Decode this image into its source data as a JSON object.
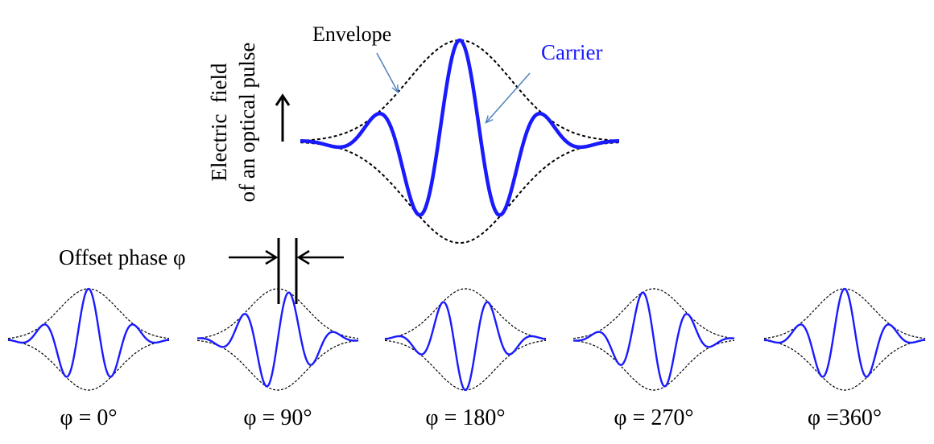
{
  "diagram": {
    "main_pulse": {
      "envelope_label": "Envelope",
      "carrier_label": "Carrier",
      "axis_label_line1": "Electric  field",
      "axis_label_line2": "of an optical pulse"
    },
    "offset_label": "Offset phase φ",
    "phase_labels": [
      "φ = 0°",
      "φ = 90°",
      "φ = 180°",
      "φ = 270°",
      "φ =360°"
    ],
    "phases_deg": [
      0,
      90,
      180,
      270,
      360
    ],
    "colors": {
      "carrier": "#1a1aff",
      "envelope": "#000000",
      "callout_arrow": "#4f81bd",
      "text": "#000000",
      "carrier_label": "#1a1aff"
    }
  }
}
